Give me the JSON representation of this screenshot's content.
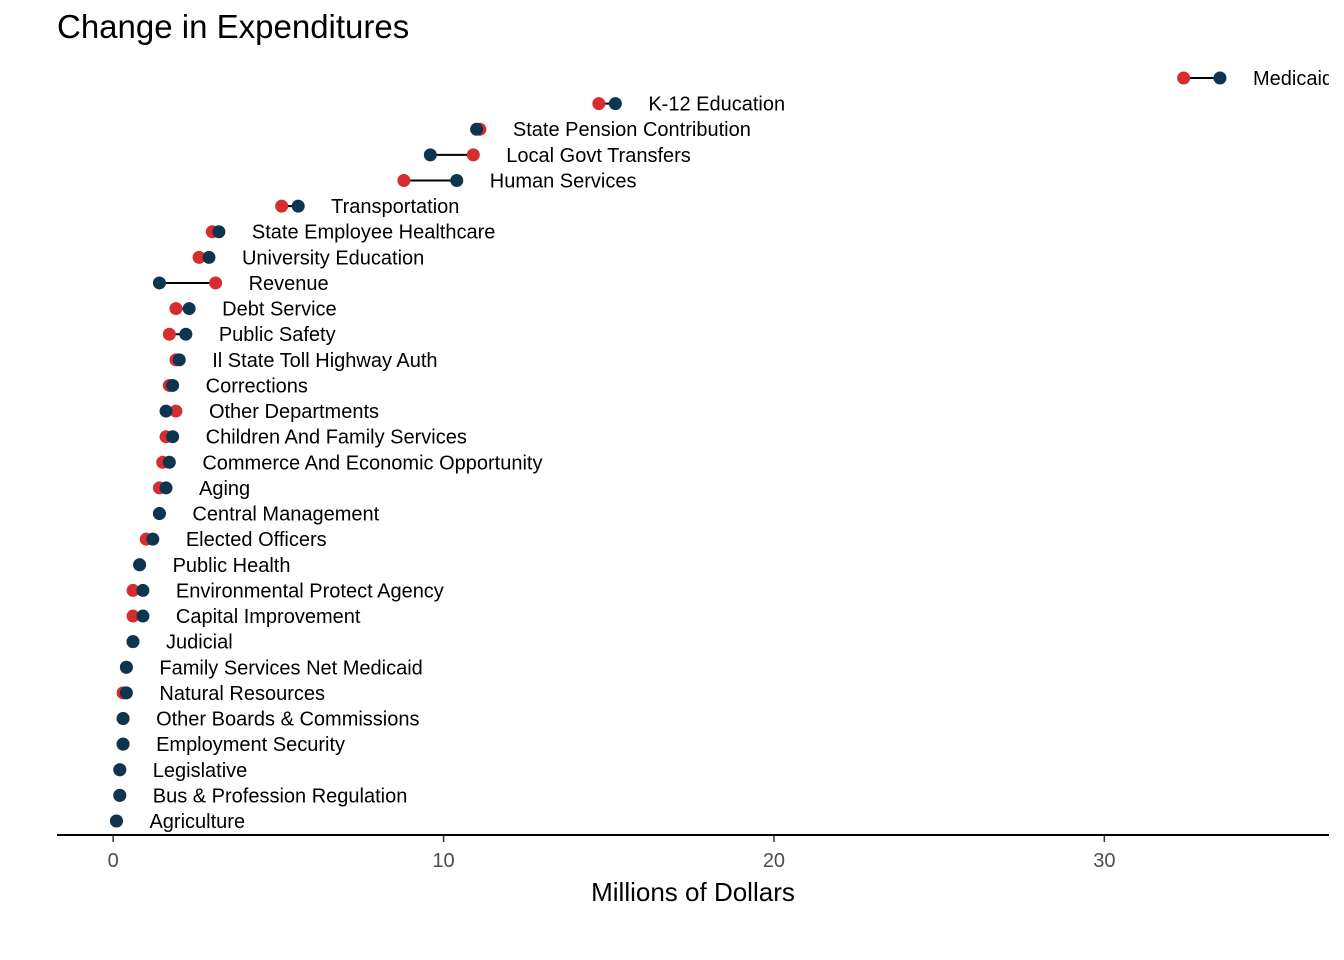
{
  "chart_data": {
    "type": "dumbbell",
    "title": "Change in Expenditures",
    "xlabel": "Millions of Dollars",
    "ylabel": "",
    "xlim": [
      -1.7,
      36.8
    ],
    "xticks": [
      0,
      10,
      20,
      30
    ],
    "grid": false,
    "legend": "none",
    "colors": {
      "start": "#d62d2f",
      "end": "#0d3550",
      "segment": "#000000"
    },
    "categories": [
      "Medicaid",
      "K-12 Education",
      "State Pension Contribution",
      "Local Govt Transfers",
      "Human Services",
      "Transportation",
      "State Employee Healthcare",
      "University Education",
      "Revenue",
      "Debt Service",
      "Public Safety",
      "Il State Toll Highway Auth",
      "Corrections",
      "Other Departments",
      "Children And Family Services",
      "Commerce And Economic Opportunity",
      "Aging",
      "Central Management",
      "Elected Officers",
      "Public Health",
      "Environmental Protect Agency",
      "Capital Improvement",
      "Judicial",
      "Family Services Net Medicaid",
      "Natural Resources",
      "Other Boards & Commissions",
      "Employment Security",
      "Legislative",
      "Bus & Profession Regulation",
      "Agriculture"
    ],
    "series": [
      {
        "values": [
          32.4,
          14.7,
          11.1,
          10.9,
          8.8,
          5.1,
          3.0,
          2.6,
          3.1,
          1.9,
          1.7,
          1.9,
          1.7,
          1.9,
          1.6,
          1.5,
          1.4,
          1.4,
          1.0,
          0.8,
          0.6,
          0.6,
          0.6,
          0.4,
          0.3,
          0.3,
          0.3,
          0.2,
          0.2,
          0.1
        ]
      },
      {
        "values": [
          33.5,
          15.2,
          11.0,
          9.6,
          10.4,
          5.6,
          3.2,
          2.9,
          1.4,
          2.3,
          2.2,
          2.0,
          1.8,
          1.6,
          1.8,
          1.7,
          1.6,
          1.4,
          1.2,
          0.8,
          0.9,
          0.9,
          0.6,
          0.4,
          0.4,
          0.3,
          0.3,
          0.2,
          0.2,
          0.1
        ]
      }
    ]
  }
}
